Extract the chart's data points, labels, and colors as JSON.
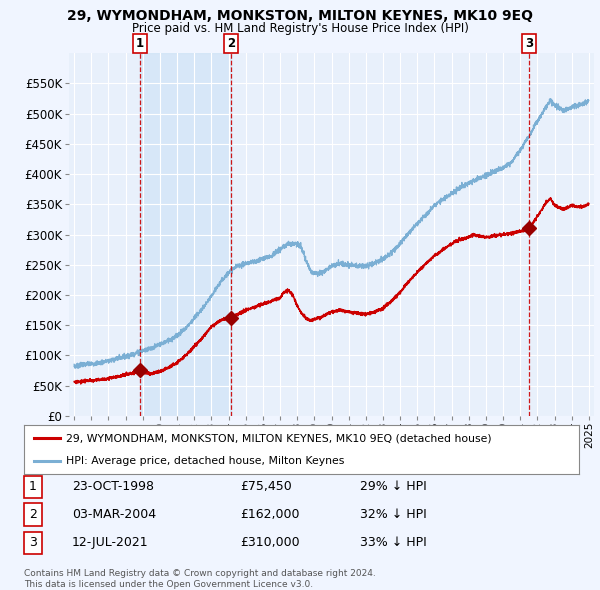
{
  "title": "29, WYMONDHAM, MONKSTON, MILTON KEYNES, MK10 9EQ",
  "subtitle": "Price paid vs. HM Land Registry's House Price Index (HPI)",
  "bg_color": "#f0f5ff",
  "plot_bg_color": "#e8f0fb",
  "grid_color": "#ffffff",
  "sale_color": "#cc0000",
  "hpi_color": "#7bafd4",
  "sale_dot_color": "#990000",
  "vline_color": "#cc0000",
  "shade_color": "#d0e4f7",
  "transactions": [
    {
      "label": "1",
      "date_num": 1998.81,
      "price": 75450
    },
    {
      "label": "2",
      "date_num": 2004.17,
      "price": 162000
    },
    {
      "label": "3",
      "date_num": 2021.53,
      "price": 310000
    }
  ],
  "table_rows": [
    {
      "num": "1",
      "date": "23-OCT-1998",
      "price": "£75,450",
      "pct": "29% ↓ HPI"
    },
    {
      "num": "2",
      "date": "03-MAR-2004",
      "price": "£162,000",
      "pct": "32% ↓ HPI"
    },
    {
      "num": "3",
      "date": "12-JUL-2021",
      "price": "£310,000",
      "pct": "33% ↓ HPI"
    }
  ],
  "legend_entries": [
    "29, WYMONDHAM, MONKSTON, MILTON KEYNES, MK10 9EQ (detached house)",
    "HPI: Average price, detached house, Milton Keynes"
  ],
  "footer": "Contains HM Land Registry data © Crown copyright and database right 2024.\nThis data is licensed under the Open Government Licence v3.0.",
  "ylim": [
    0,
    600000
  ],
  "yticks": [
    0,
    50000,
    100000,
    150000,
    200000,
    250000,
    300000,
    350000,
    400000,
    450000,
    500000,
    550000
  ],
  "xlim_start": 1994.7,
  "xlim_end": 2025.3,
  "hpi_anchors": [
    [
      1995.0,
      82000
    ],
    [
      1995.5,
      85000
    ],
    [
      1996.0,
      86000
    ],
    [
      1996.5,
      88000
    ],
    [
      1997.0,
      91000
    ],
    [
      1997.5,
      95000
    ],
    [
      1998.0,
      99000
    ],
    [
      1998.5,
      103000
    ],
    [
      1999.0,
      108000
    ],
    [
      1999.5,
      112000
    ],
    [
      2000.0,
      118000
    ],
    [
      2000.5,
      125000
    ],
    [
      2001.0,
      133000
    ],
    [
      2001.5,
      145000
    ],
    [
      2002.0,
      162000
    ],
    [
      2002.5,
      178000
    ],
    [
      2003.0,
      198000
    ],
    [
      2003.5,
      220000
    ],
    [
      2004.0,
      238000
    ],
    [
      2004.5,
      248000
    ],
    [
      2005.0,
      252000
    ],
    [
      2005.5,
      255000
    ],
    [
      2006.0,
      260000
    ],
    [
      2006.5,
      265000
    ],
    [
      2007.0,
      275000
    ],
    [
      2007.5,
      285000
    ],
    [
      2008.0,
      285000
    ],
    [
      2008.25,
      278000
    ],
    [
      2008.5,
      258000
    ],
    [
      2008.75,
      242000
    ],
    [
      2009.0,
      235000
    ],
    [
      2009.5,
      238000
    ],
    [
      2010.0,
      248000
    ],
    [
      2010.5,
      252000
    ],
    [
      2011.0,
      250000
    ],
    [
      2011.5,
      248000
    ],
    [
      2012.0,
      248000
    ],
    [
      2012.5,
      252000
    ],
    [
      2013.0,
      260000
    ],
    [
      2013.5,
      270000
    ],
    [
      2014.0,
      285000
    ],
    [
      2014.5,
      302000
    ],
    [
      2015.0,
      318000
    ],
    [
      2015.5,
      332000
    ],
    [
      2016.0,
      348000
    ],
    [
      2016.5,
      358000
    ],
    [
      2017.0,
      368000
    ],
    [
      2017.5,
      378000
    ],
    [
      2018.0,
      385000
    ],
    [
      2018.5,
      392000
    ],
    [
      2019.0,
      398000
    ],
    [
      2019.5,
      405000
    ],
    [
      2020.0,
      410000
    ],
    [
      2020.5,
      420000
    ],
    [
      2021.0,
      440000
    ],
    [
      2021.5,
      462000
    ],
    [
      2022.0,
      488000
    ],
    [
      2022.5,
      510000
    ],
    [
      2022.75,
      522000
    ],
    [
      2023.0,
      515000
    ],
    [
      2023.5,
      505000
    ],
    [
      2024.0,
      510000
    ],
    [
      2024.5,
      515000
    ],
    [
      2025.0,
      520000
    ]
  ],
  "sale_anchors": [
    [
      1995.0,
      56000
    ],
    [
      1995.5,
      57500
    ],
    [
      1996.0,
      58500
    ],
    [
      1996.5,
      60000
    ],
    [
      1997.0,
      62000
    ],
    [
      1997.5,
      65000
    ],
    [
      1998.0,
      68000
    ],
    [
      1998.5,
      71000
    ],
    [
      1998.81,
      75450
    ],
    [
      1999.0,
      73000
    ],
    [
      1999.5,
      70000
    ],
    [
      2000.0,
      74000
    ],
    [
      2000.5,
      80000
    ],
    [
      2001.0,
      88000
    ],
    [
      2001.5,
      100000
    ],
    [
      2002.0,
      115000
    ],
    [
      2002.5,
      130000
    ],
    [
      2003.0,
      148000
    ],
    [
      2003.5,
      158000
    ],
    [
      2004.0,
      162000
    ],
    [
      2004.17,
      162000
    ],
    [
      2004.5,
      168000
    ],
    [
      2005.0,
      175000
    ],
    [
      2005.5,
      180000
    ],
    [
      2006.0,
      185000
    ],
    [
      2006.5,
      190000
    ],
    [
      2007.0,
      195000
    ],
    [
      2007.25,
      205000
    ],
    [
      2007.5,
      208000
    ],
    [
      2007.75,
      200000
    ],
    [
      2008.0,
      182000
    ],
    [
      2008.25,
      170000
    ],
    [
      2008.5,
      162000
    ],
    [
      2008.75,
      158000
    ],
    [
      2009.0,
      160000
    ],
    [
      2009.25,
      162000
    ],
    [
      2009.5,
      165000
    ],
    [
      2010.0,
      172000
    ],
    [
      2010.5,
      175000
    ],
    [
      2011.0,
      172000
    ],
    [
      2011.5,
      170000
    ],
    [
      2012.0,
      168000
    ],
    [
      2012.5,
      172000
    ],
    [
      2013.0,
      178000
    ],
    [
      2013.5,
      190000
    ],
    [
      2014.0,
      205000
    ],
    [
      2014.5,
      222000
    ],
    [
      2015.0,
      238000
    ],
    [
      2015.5,
      252000
    ],
    [
      2016.0,
      265000
    ],
    [
      2016.5,
      275000
    ],
    [
      2017.0,
      285000
    ],
    [
      2017.5,
      292000
    ],
    [
      2018.0,
      295000
    ],
    [
      2018.25,
      300000
    ],
    [
      2018.5,
      298000
    ],
    [
      2019.0,
      295000
    ],
    [
      2019.5,
      298000
    ],
    [
      2020.0,
      300000
    ],
    [
      2020.5,
      302000
    ],
    [
      2021.0,
      305000
    ],
    [
      2021.53,
      310000
    ],
    [
      2022.0,
      330000
    ],
    [
      2022.5,
      352000
    ],
    [
      2022.75,
      360000
    ],
    [
      2023.0,
      348000
    ],
    [
      2023.5,
      342000
    ],
    [
      2024.0,
      348000
    ],
    [
      2024.5,
      345000
    ],
    [
      2025.0,
      350000
    ]
  ]
}
